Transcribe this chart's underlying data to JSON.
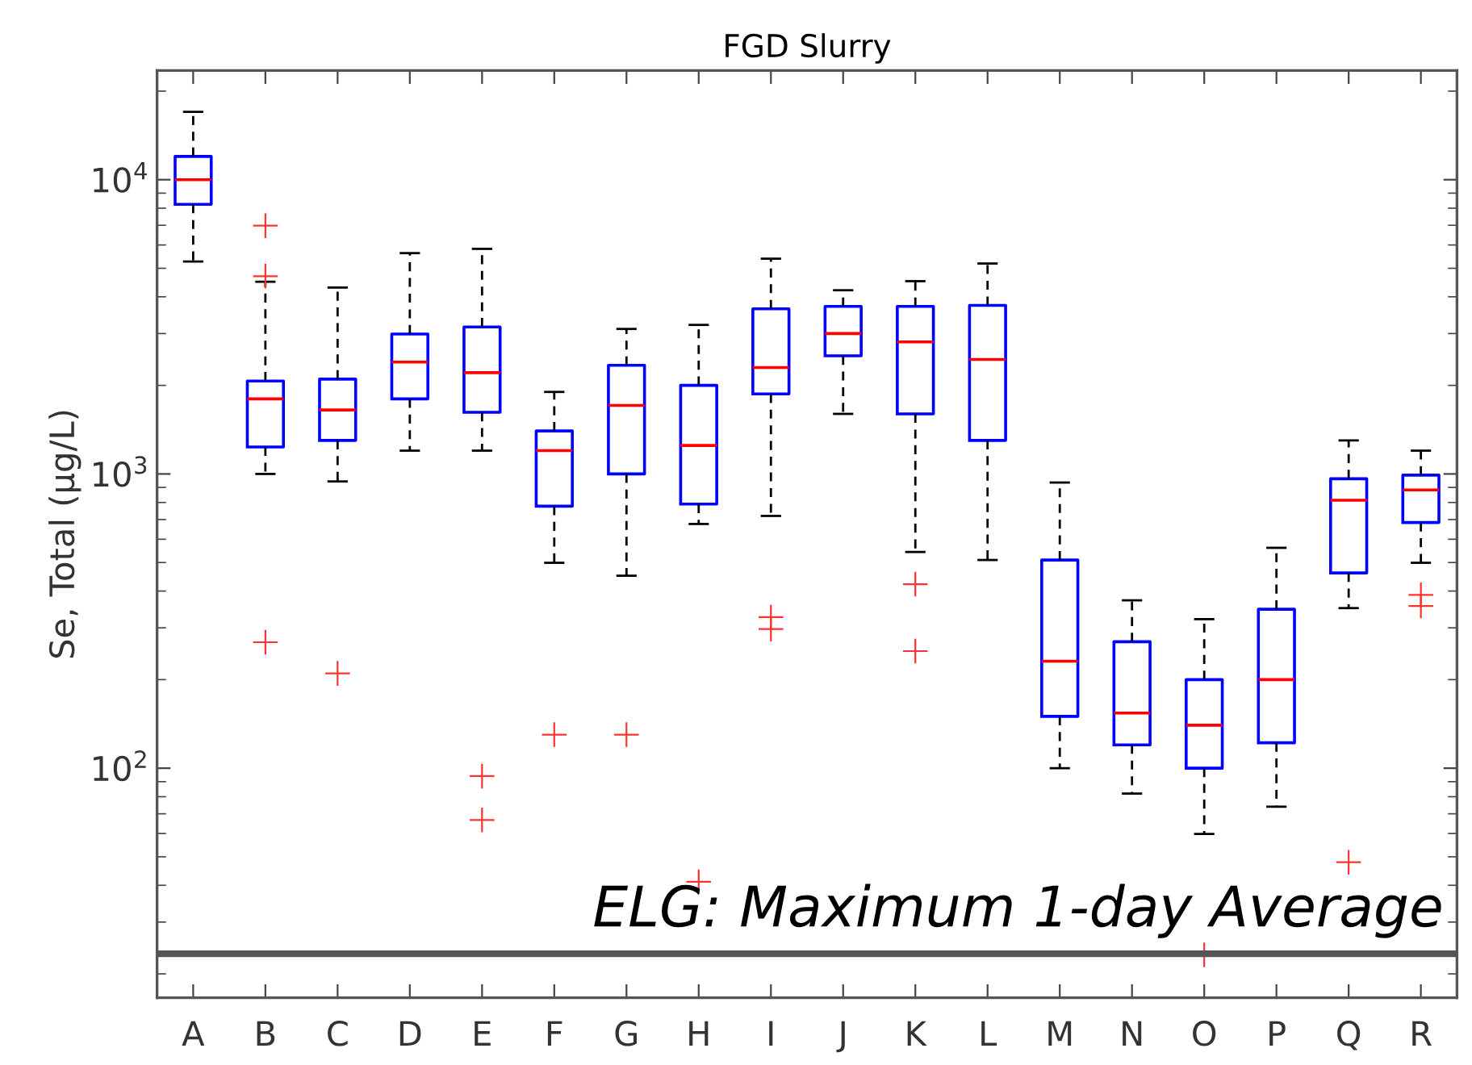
{
  "chart_data": {
    "type": "box",
    "title": "FGD Slurry",
    "ylabel": "Se, Total (μg/L)",
    "categories": [
      "A",
      "B",
      "C",
      "D",
      "E",
      "F",
      "G",
      "H",
      "I",
      "J",
      "K",
      "L",
      "M",
      "N",
      "O",
      "P",
      "Q",
      "R"
    ],
    "log": "y",
    "ylim": [
      16.6,
      23500
    ],
    "yticks": [
      {
        "value": 100,
        "label": "10$^{2}$"
      },
      {
        "value": 1000,
        "label": "10$^{3}$"
      },
      {
        "value": 10000,
        "label": "10$^{4}$"
      }
    ],
    "grid": false,
    "series": [
      {
        "color": "#0000ff",
        "boxes": [
          {
            "low": 5270,
            "q1": 8250,
            "median": 10000,
            "q3": 12000,
            "high": 17000
          },
          {
            "low": 1000,
            "q1": 1235,
            "median": 1800,
            "q3": 2070,
            "high": 4500,
            "outliers": [
              6980,
              4700,
              268
            ]
          },
          {
            "low": 943,
            "q1": 1300,
            "median": 1650,
            "q3": 2100,
            "high": 4300,
            "outliers": [
              210
            ]
          },
          {
            "low": 1200,
            "q1": 1800,
            "median": 2400,
            "q3": 2990,
            "high": 5630
          },
          {
            "low": 1200,
            "q1": 1620,
            "median": 2210,
            "q3": 3160,
            "high": 5820,
            "outliers": [
              94,
              66.7
            ]
          },
          {
            "low": 499,
            "q1": 777,
            "median": 1200,
            "q3": 1400,
            "high": 1900,
            "outliers": [
              130
            ]
          },
          {
            "low": 451,
            "q1": 1000,
            "median": 1710,
            "q3": 2340,
            "high": 3110,
            "outliers": [
              130
            ]
          },
          {
            "low": 676,
            "q1": 790,
            "median": 1250,
            "q3": 2000,
            "high": 3210,
            "outliers": [
              41.1
            ]
          },
          {
            "low": 720,
            "q1": 1870,
            "median": 2300,
            "q3": 3640,
            "high": 5390,
            "outliers": [
              326,
              297
            ]
          },
          {
            "low": 1600,
            "q1": 2520,
            "median": 3000,
            "q3": 3710,
            "high": 4210
          },
          {
            "low": 543,
            "q1": 1600,
            "median": 2810,
            "q3": 3710,
            "high": 4520,
            "outliers": [
              422,
              250
            ]
          },
          {
            "low": 510,
            "q1": 1300,
            "median": 2450,
            "q3": 3740,
            "high": 5190
          },
          {
            "low": 100,
            "q1": 150,
            "median": 231,
            "q3": 510,
            "high": 935
          },
          {
            "low": 82,
            "q1": 120,
            "median": 154,
            "q3": 269,
            "high": 372
          },
          {
            "low": 59.8,
            "q1": 100,
            "median": 140,
            "q3": 200,
            "high": 321,
            "outliers": [
              23.2
            ]
          },
          {
            "low": 74,
            "q1": 122,
            "median": 200,
            "q3": 347,
            "high": 561
          },
          {
            "low": 350,
            "q1": 461,
            "median": 814,
            "q3": 963,
            "high": 1300,
            "outliers": [
              47.9
            ]
          },
          {
            "low": 499,
            "q1": 684,
            "median": 882,
            "q3": 991,
            "high": 1200,
            "outliers": [
              388,
              356
            ]
          }
        ]
      }
    ],
    "ref_lines": [
      {
        "axis": "y",
        "value": 23.4,
        "label": "ELG: Maximum 1-day Average",
        "color": "#555555",
        "line_style": "solid"
      }
    ]
  }
}
